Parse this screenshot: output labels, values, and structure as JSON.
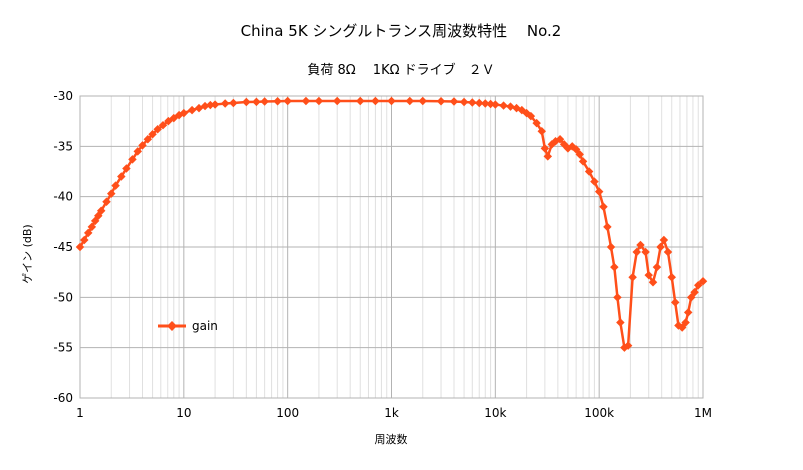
{
  "chart_data": {
    "type": "line",
    "title": "China 5K シングルトランス周波数特性　 No.2",
    "subtitle": "負荷 8Ω　 1KΩ ドライブ　２Ｖ",
    "xlabel": "周波数",
    "ylabel": "ゲイン (dB)",
    "xscale": "log",
    "xlim": [
      1,
      1000000
    ],
    "ylim": [
      -60,
      -30
    ],
    "x_tick_labels": [
      "1",
      "10",
      "100",
      "1k",
      "10k",
      "100k",
      "1M"
    ],
    "y_ticks": [
      -30,
      -35,
      -40,
      -45,
      -50,
      -55,
      -60
    ],
    "grid": true,
    "legend_position": "left-bottom",
    "series_color": "#ff4f1a",
    "series": [
      {
        "name": "gain",
        "points": [
          [
            1,
            -45.0
          ],
          [
            1.1,
            -44.3
          ],
          [
            1.2,
            -43.6
          ],
          [
            1.3,
            -43.0
          ],
          [
            1.4,
            -42.4
          ],
          [
            1.5,
            -41.9
          ],
          [
            1.6,
            -41.4
          ],
          [
            1.8,
            -40.5
          ],
          [
            2,
            -39.7
          ],
          [
            2.2,
            -38.9
          ],
          [
            2.5,
            -38.0
          ],
          [
            2.8,
            -37.2
          ],
          [
            3.2,
            -36.3
          ],
          [
            3.6,
            -35.5
          ],
          [
            4,
            -34.9
          ],
          [
            4.5,
            -34.3
          ],
          [
            5,
            -33.8
          ],
          [
            5.6,
            -33.3
          ],
          [
            6.3,
            -32.9
          ],
          [
            7.1,
            -32.5
          ],
          [
            8,
            -32.2
          ],
          [
            9,
            -31.9
          ],
          [
            10,
            -31.7
          ],
          [
            12,
            -31.4
          ],
          [
            14,
            -31.2
          ],
          [
            16,
            -31.0
          ],
          [
            18,
            -30.9
          ],
          [
            20,
            -30.85
          ],
          [
            25,
            -30.75
          ],
          [
            30,
            -30.7
          ],
          [
            40,
            -30.6
          ],
          [
            50,
            -30.58
          ],
          [
            60,
            -30.55
          ],
          [
            80,
            -30.52
          ],
          [
            100,
            -30.5
          ],
          [
            150,
            -30.5
          ],
          [
            200,
            -30.5
          ],
          [
            300,
            -30.5
          ],
          [
            500,
            -30.5
          ],
          [
            700,
            -30.5
          ],
          [
            1000,
            -30.5
          ],
          [
            1500,
            -30.5
          ],
          [
            2000,
            -30.5
          ],
          [
            3000,
            -30.52
          ],
          [
            4000,
            -30.55
          ],
          [
            5000,
            -30.6
          ],
          [
            6000,
            -30.65
          ],
          [
            7000,
            -30.7
          ],
          [
            8000,
            -30.75
          ],
          [
            9000,
            -30.8
          ],
          [
            10000,
            -30.85
          ],
          [
            12000,
            -30.95
          ],
          [
            14000,
            -31.05
          ],
          [
            16000,
            -31.2
          ],
          [
            18000,
            -31.4
          ],
          [
            20000,
            -31.7
          ],
          [
            22000,
            -32.0
          ],
          [
            25000,
            -32.7
          ],
          [
            28000,
            -33.5
          ],
          [
            30000,
            -35.2
          ],
          [
            32000,
            -36.0
          ],
          [
            35000,
            -34.8
          ],
          [
            38000,
            -34.5
          ],
          [
            42000,
            -34.3
          ],
          [
            46000,
            -34.8
          ],
          [
            50000,
            -35.2
          ],
          [
            55000,
            -35.0
          ],
          [
            60000,
            -35.3
          ],
          [
            65000,
            -35.8
          ],
          [
            70000,
            -36.5
          ],
          [
            80000,
            -37.5
          ],
          [
            90000,
            -38.5
          ],
          [
            100000,
            -39.5
          ],
          [
            110000,
            -41.0
          ],
          [
            120000,
            -43.0
          ],
          [
            130000,
            -45.0
          ],
          [
            140000,
            -47.0
          ],
          [
            150000,
            -50.0
          ],
          [
            160000,
            -52.5
          ],
          [
            175000,
            -55.0
          ],
          [
            190000,
            -54.8
          ],
          [
            210000,
            -48.0
          ],
          [
            230000,
            -45.5
          ],
          [
            250000,
            -44.8
          ],
          [
            280000,
            -45.5
          ],
          [
            300000,
            -47.8
          ],
          [
            330000,
            -48.5
          ],
          [
            360000,
            -47.0
          ],
          [
            390000,
            -45.0
          ],
          [
            420000,
            -44.3
          ],
          [
            460000,
            -45.5
          ],
          [
            500000,
            -48.0
          ],
          [
            540000,
            -50.5
          ],
          [
            580000,
            -52.8
          ],
          [
            630000,
            -53.0
          ],
          [
            680000,
            -52.5
          ],
          [
            720000,
            -51.5
          ],
          [
            770000,
            -50.0
          ],
          [
            830000,
            -49.5
          ],
          [
            900000,
            -48.8
          ],
          [
            1000000,
            -48.4
          ]
        ]
      }
    ]
  }
}
